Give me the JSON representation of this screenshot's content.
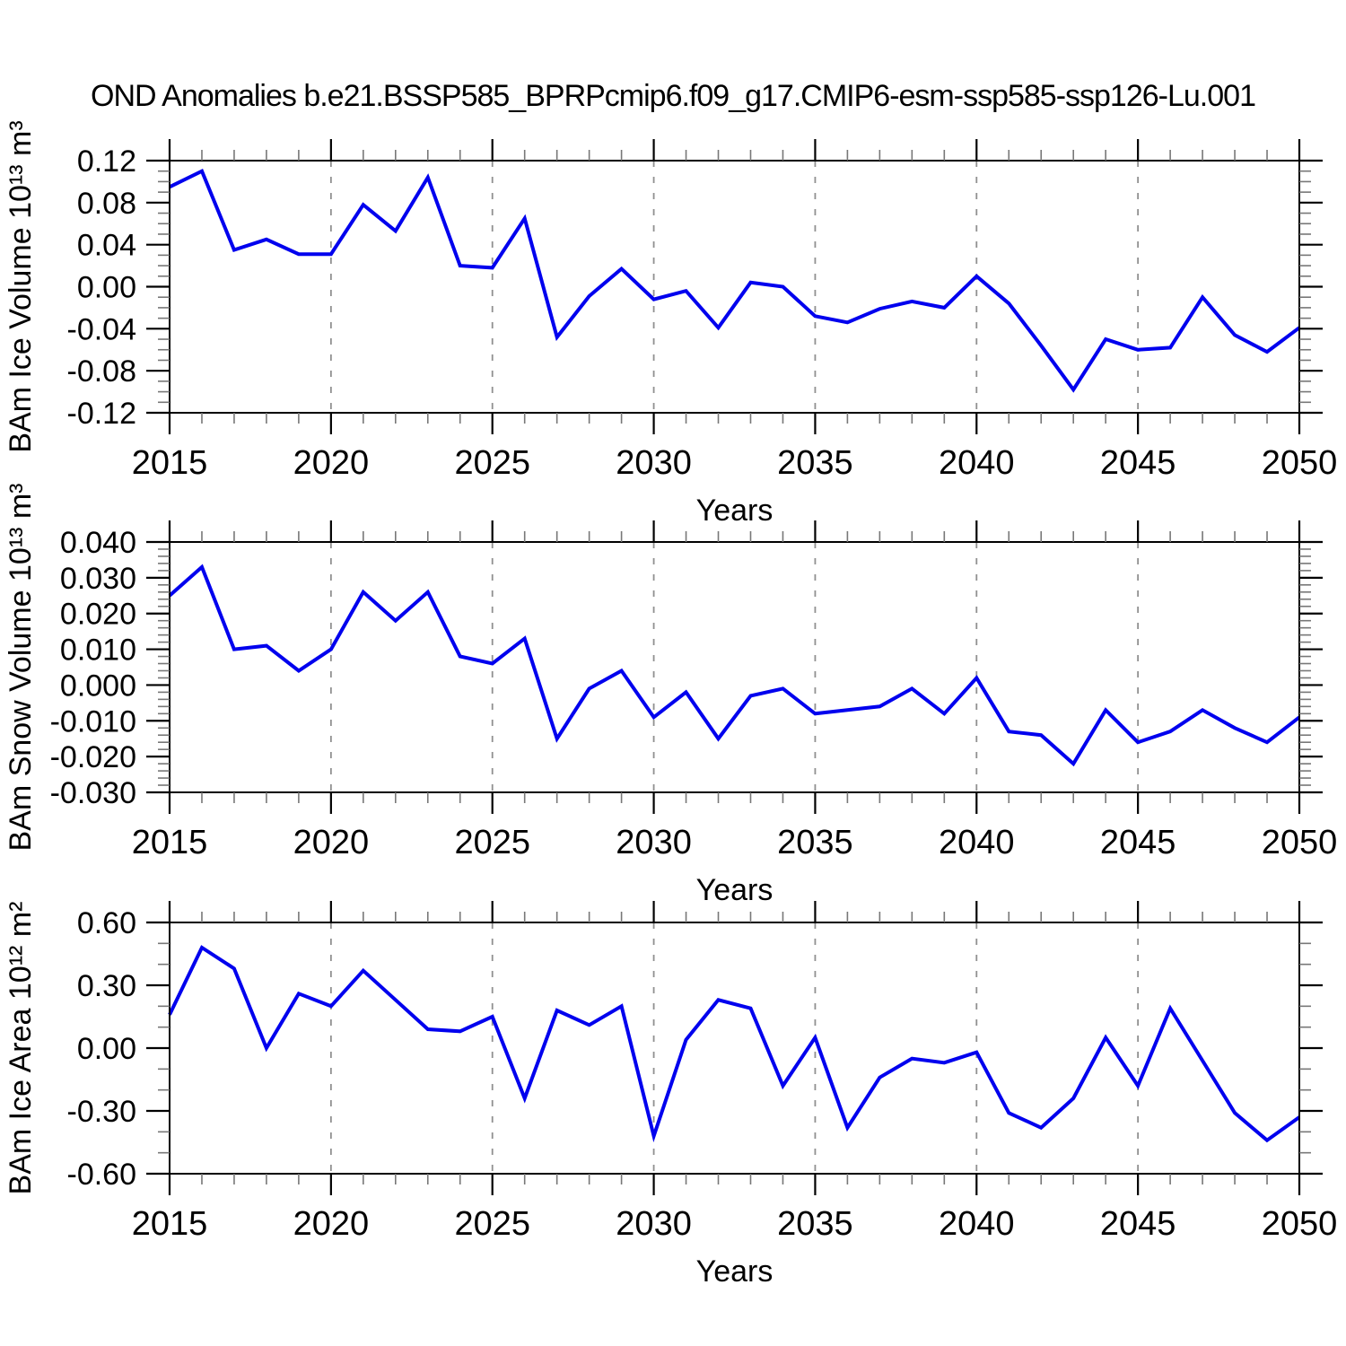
{
  "title": "OND Anomalies b.e21.BSSP585_BPRPcmip6.f09_g17.CMIP6-esm-ssp585-ssp126-Lu.001",
  "colors": {
    "line": "#0000EE",
    "grid": "#909090",
    "axis": "#000000",
    "minor_tick": "#777777"
  },
  "chart_data": [
    {
      "name": "ice-volume",
      "type": "line",
      "ylabel": "BAm Ice Volume 10¹³ m³",
      "xlabel": "Years",
      "x0": 2015,
      "xlim": [
        2015,
        2050
      ],
      "xtick_labels": [
        "2015",
        "2020",
        "2025",
        "2030",
        "2035",
        "2040",
        "2045",
        "2050"
      ],
      "grid_years": [
        2020,
        2025,
        2030,
        2035,
        2040,
        2045
      ],
      "ylim": [
        -0.12,
        0.12
      ],
      "ytick_values": [
        0.12,
        0.08,
        0.04,
        0.0,
        -0.04,
        -0.08,
        -0.12
      ],
      "ytick_labels": [
        "0.12",
        "0.08",
        "0.04",
        "0.00",
        "-0.04",
        "-0.08",
        "-0.12"
      ],
      "yminor_step": 0.01,
      "values": [
        0.095,
        0.11,
        0.035,
        0.045,
        0.031,
        0.031,
        0.078,
        0.053,
        0.104,
        0.02,
        0.018,
        0.065,
        -0.048,
        -0.009,
        0.017,
        -0.012,
        -0.004,
        -0.039,
        0.004,
        0.0,
        -0.028,
        -0.034,
        -0.021,
        -0.014,
        -0.02,
        0.01,
        -0.016,
        -0.056,
        -0.098,
        -0.05,
        -0.06,
        -0.058,
        -0.01,
        -0.046,
        -0.062,
        -0.039
      ]
    },
    {
      "name": "snow-volume",
      "type": "line",
      "ylabel": "BAm Snow Volume 10¹³ m³",
      "xlabel": "Years",
      "x0": 2015,
      "xlim": [
        2015,
        2050
      ],
      "xtick_labels": [
        "2015",
        "2020",
        "2025",
        "2030",
        "2035",
        "2040",
        "2045",
        "2050"
      ],
      "grid_years": [
        2020,
        2025,
        2030,
        2035,
        2040,
        2045
      ],
      "ylim": [
        -0.03,
        0.04
      ],
      "ytick_values": [
        0.04,
        0.03,
        0.02,
        0.01,
        0.0,
        -0.01,
        -0.02,
        -0.03
      ],
      "ytick_labels": [
        "0.040",
        "0.030",
        "0.020",
        "0.010",
        "0.000",
        "-0.010",
        "-0.020",
        "-0.030"
      ],
      "yminor_step": 0.002,
      "values": [
        0.025,
        0.033,
        0.01,
        0.011,
        0.004,
        0.01,
        0.026,
        0.018,
        0.026,
        0.008,
        0.006,
        0.013,
        -0.015,
        -0.001,
        0.004,
        -0.009,
        -0.002,
        -0.015,
        -0.003,
        -0.001,
        -0.008,
        -0.007,
        -0.006,
        -0.001,
        -0.008,
        0.002,
        -0.013,
        -0.014,
        -0.022,
        -0.007,
        -0.016,
        -0.013,
        -0.007,
        -0.012,
        -0.016,
        -0.009
      ]
    },
    {
      "name": "ice-area",
      "type": "line",
      "ylabel": "BAm Ice Area 10¹² m²",
      "xlabel": "Years",
      "x0": 2015,
      "xlim": [
        2015,
        2050
      ],
      "xtick_labels": [
        "2015",
        "2020",
        "2025",
        "2030",
        "2035",
        "2040",
        "2045",
        "2050"
      ],
      "grid_years": [
        2020,
        2025,
        2030,
        2035,
        2040,
        2045
      ],
      "ylim": [
        -0.6,
        0.6
      ],
      "ytick_values": [
        0.6,
        0.3,
        0.0,
        -0.3,
        -0.6
      ],
      "ytick_labels": [
        "0.60",
        "0.30",
        "0.00",
        "-0.30",
        "-0.60"
      ],
      "yminor_step": 0.1,
      "values": [
        0.16,
        0.48,
        0.38,
        0.0,
        0.26,
        0.2,
        0.37,
        0.23,
        0.09,
        0.08,
        0.15,
        -0.24,
        0.18,
        0.11,
        0.2,
        -0.42,
        0.04,
        0.23,
        0.19,
        -0.18,
        0.05,
        -0.38,
        -0.14,
        -0.05,
        -0.07,
        -0.02,
        -0.31,
        -0.38,
        -0.24,
        0.05,
        -0.18,
        0.19,
        -0.06,
        -0.31,
        -0.44,
        -0.33
      ]
    }
  ]
}
